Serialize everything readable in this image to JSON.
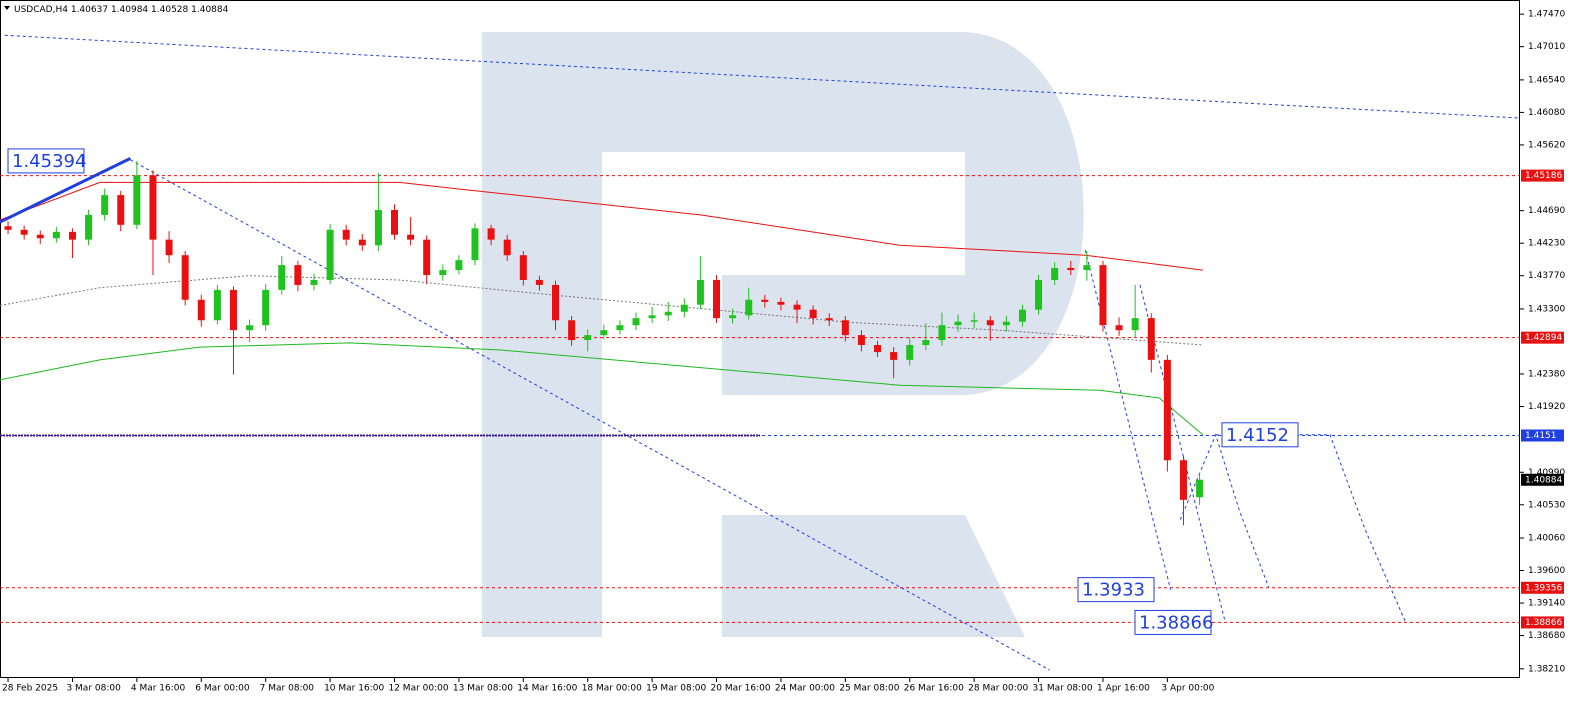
{
  "chart_data": {
    "type": "candlestick",
    "title": "USDCAD,H4",
    "bull_color": "#1fc21f",
    "bear_color": "#e81010",
    "open": [
      1.4447,
      1.4442,
      1.4435,
      1.443,
      1.4439,
      1.4428,
      1.4463,
      1.4491,
      1.4449,
      1.4519,
      1.4428,
      1.4406,
      1.4343,
      1.4314,
      1.4357,
      1.43,
      1.4307,
      1.4357,
      1.4392,
      1.4364,
      1.4371,
      1.4442,
      1.4428,
      1.442,
      1.447,
      1.4435,
      1.4428,
      1.4378,
      1.4385,
      1.4399,
      1.4444,
      1.4428,
      1.4406,
      1.4371,
      1.4364,
      1.4314,
      1.4286,
      1.4293,
      1.43,
      1.4307,
      1.4317,
      1.4321,
      1.4326,
      1.4336,
      1.4371,
      1.4317,
      1.4321,
      1.4343,
      1.434,
      1.4336,
      1.4329,
      1.4317,
      1.4314,
      1.4293,
      1.4279,
      1.4269,
      1.4258,
      1.4279,
      1.4286,
      1.4307,
      1.4312,
      1.4314,
      1.4307,
      1.4312,
      1.4329,
      1.4371,
      1.4388,
      1.4385,
      1.4392,
      1.4307,
      1.43,
      1.4317,
      1.4258,
      1.4116,
      1.40637
    ],
    "high": [
      1.4454,
      1.4448,
      1.4441,
      1.4446,
      1.4444,
      1.447,
      1.45,
      1.4497,
      1.4539,
      1.4526,
      1.444,
      1.4412,
      1.435,
      1.4364,
      1.4362,
      1.4315,
      1.4365,
      1.4405,
      1.4398,
      1.438,
      1.445,
      1.4449,
      1.4436,
      1.4522,
      1.4478,
      1.446,
      1.4434,
      1.4393,
      1.4406,
      1.4451,
      1.4449,
      1.4435,
      1.4412,
      1.4377,
      1.437,
      1.432,
      1.4301,
      1.4308,
      1.4314,
      1.4325,
      1.4333,
      1.434,
      1.4345,
      1.4405,
      1.4378,
      1.433,
      1.436,
      1.435,
      1.4346,
      1.4342,
      1.4335,
      1.4324,
      1.432,
      1.43,
      1.4285,
      1.4276,
      1.429,
      1.431,
      1.4325,
      1.4322,
      1.4325,
      1.432,
      1.432,
      1.4336,
      1.4378,
      1.4396,
      1.4398,
      1.4412,
      1.4398,
      1.4318,
      1.4364,
      1.4324,
      1.4265,
      1.4122,
      1.40984
    ],
    "low": [
      1.4436,
      1.4428,
      1.4422,
      1.4424,
      1.4402,
      1.442,
      1.4455,
      1.444,
      1.4443,
      1.4378,
      1.4395,
      1.4335,
      1.4305,
      1.4308,
      1.4237,
      1.4283,
      1.4299,
      1.435,
      1.4355,
      1.4356,
      1.4365,
      1.442,
      1.4412,
      1.4412,
      1.4428,
      1.442,
      1.4365,
      1.437,
      1.4379,
      1.4392,
      1.442,
      1.4398,
      1.4363,
      1.4356,
      1.43,
      1.4278,
      1.427,
      1.4287,
      1.4294,
      1.43,
      1.431,
      1.4313,
      1.4318,
      1.433,
      1.431,
      1.4309,
      1.4315,
      1.4332,
      1.4328,
      1.431,
      1.4308,
      1.4306,
      1.4284,
      1.427,
      1.4262,
      1.4232,
      1.425,
      1.4272,
      1.4278,
      1.4298,
      1.4303,
      1.4285,
      1.4298,
      1.4305,
      1.4322,
      1.4364,
      1.4378,
      1.437,
      1.4298,
      1.4292,
      1.429,
      1.424,
      1.41,
      1.4024,
      1.40528
    ],
    "close": [
      1.4442,
      1.4435,
      1.443,
      1.4439,
      1.4428,
      1.4463,
      1.4491,
      1.4449,
      1.4519,
      1.4428,
      1.4406,
      1.4343,
      1.4314,
      1.4357,
      1.43,
      1.4307,
      1.4357,
      1.4392,
      1.4364,
      1.4371,
      1.4442,
      1.4428,
      1.442,
      1.447,
      1.4435,
      1.4428,
      1.4378,
      1.4385,
      1.4399,
      1.4444,
      1.4428,
      1.4406,
      1.4371,
      1.4364,
      1.4314,
      1.4286,
      1.4293,
      1.43,
      1.4307,
      1.4317,
      1.4321,
      1.4326,
      1.4336,
      1.4371,
      1.4317,
      1.4321,
      1.4343,
      1.434,
      1.4336,
      1.4329,
      1.4317,
      1.4314,
      1.4293,
      1.4279,
      1.4269,
      1.4258,
      1.4279,
      1.4286,
      1.4307,
      1.4312,
      1.4314,
      1.4307,
      1.4312,
      1.4329,
      1.4371,
      1.4388,
      1.4385,
      1.4392,
      1.4307,
      1.43,
      1.4317,
      1.4258,
      1.4116,
      1.406,
      1.40884
    ],
    "xlim": [
      -0.5,
      93.9
    ],
    "ylim": [
      1.3808,
      1.4767
    ],
    "xticks": [
      {
        "value": 0,
        "label": "28 Feb 2025"
      },
      {
        "value": 4,
        "label": "3 Mar 08:00"
      },
      {
        "value": 8,
        "label": "4 Mar 16:00"
      },
      {
        "value": 12,
        "label": "6 Mar 00:00"
      },
      {
        "value": 16,
        "label": "7 Mar 08:00"
      },
      {
        "value": 20,
        "label": "10 Mar 16:00"
      },
      {
        "value": 24,
        "label": "12 Mar 00:00"
      },
      {
        "value": 28,
        "label": "13 Mar 08:00"
      },
      {
        "value": 32,
        "label": "14 Mar 16:00"
      },
      {
        "value": 36,
        "label": "18 Mar 00:00"
      },
      {
        "value": 40,
        "label": "19 Mar 08:00"
      },
      {
        "value": 44,
        "label": "20 Mar 16:00"
      },
      {
        "value": 48,
        "label": "24 Mar 00:00"
      },
      {
        "value": 52,
        "label": "25 Mar 08:00"
      },
      {
        "value": 56,
        "label": "26 Mar 16:00"
      },
      {
        "value": 60,
        "label": "28 Mar 00:00"
      },
      {
        "value": 64,
        "label": "31 Mar 08:00"
      },
      {
        "value": 68,
        "label": "1 Apr 16:00"
      },
      {
        "value": 72,
        "label": "3 Apr 00:00"
      }
    ],
    "yticks": [
      {
        "value": 1.4747,
        "label": "1.47470"
      },
      {
        "value": 1.4701,
        "label": "1.47010"
      },
      {
        "value": 1.4654,
        "label": "1.46540"
      },
      {
        "value": 1.4608,
        "label": "1.46080"
      },
      {
        "value": 1.4562,
        "label": "1.45620"
      },
      {
        "value": 1.4469,
        "label": "1.44690"
      },
      {
        "value": 1.4423,
        "label": "1.44230"
      },
      {
        "value": 1.4377,
        "label": "1.43770"
      },
      {
        "value": 1.433,
        "label": "1.43300"
      },
      {
        "value": 1.4238,
        "label": "1.42380"
      },
      {
        "value": 1.4192,
        "label": "1.41920"
      },
      {
        "value": 1.4099,
        "label": "1.40990"
      },
      {
        "value": 1.4053,
        "label": "1.40530"
      },
      {
        "value": 1.4006,
        "label": "1.40060"
      },
      {
        "value": 1.396,
        "label": "1.39600"
      },
      {
        "value": 1.3914,
        "label": "1.39140"
      },
      {
        "value": 1.3868,
        "label": "1.38680"
      },
      {
        "value": 1.3821,
        "label": "1.38210"
      }
    ],
    "levels": [
      {
        "value": 1.45186,
        "color": "#e81010"
      },
      {
        "value": 1.42894,
        "color": "#e81010"
      },
      {
        "value": 1.4151,
        "color": "#1f3fe0"
      },
      {
        "value": 1.39356,
        "color": "#e81010"
      },
      {
        "value": 1.38866,
        "color": "#e81010"
      }
    ],
    "overlays": [
      {
        "color": "#e81010",
        "dash": "none",
        "width": 1,
        "x": [
          -0.5,
          5.7,
          24.3,
          28.7,
          43.0,
          55.4,
          66.9,
          74.2
        ],
        "values": [
          1.4456,
          1.4509,
          1.4509,
          1.4498,
          1.4463,
          1.442,
          1.4406,
          1.4385
        ]
      },
      {
        "color": "#1fb81f",
        "dash": "none",
        "width": 1,
        "x": [
          -0.5,
          5.7,
          11.9,
          21.2,
          30.6,
          43.0,
          55.4,
          67.8,
          71.5,
          74.2
        ],
        "values": [
          1.423,
          1.4258,
          1.4276,
          1.4282,
          1.4272,
          1.4247,
          1.4222,
          1.4215,
          1.4204,
          1.4152
        ]
      },
      {
        "color": "#777777",
        "dash": "2 2",
        "width": 1,
        "x": [
          -0.5,
          5.7,
          15.0,
          24.3,
          33.7,
          52.3,
          61.6,
          74.2
        ],
        "values": [
          1.4335,
          1.436,
          1.4377,
          1.4371,
          1.435,
          1.4311,
          1.43,
          1.4279
        ]
      },
      {
        "color": "#1f3fe0",
        "dash": "3 3",
        "width": 1,
        "x": [
          -0.2,
          93.9
        ],
        "values": [
          1.4717,
          1.46
        ]
      },
      {
        "color": "#1f3fe0",
        "dash": "3 3",
        "width": 1,
        "x": [
          7.6,
          64.7
        ],
        "values": [
          1.4541,
          1.3819
        ]
      },
      {
        "color": "#1f3fe0",
        "dash": "none",
        "width": 3,
        "x": [
          -0.5,
          7.6
        ],
        "values": [
          1.4453,
          1.4543
        ]
      },
      {
        "color": "#1f3fe0",
        "dash": "3 3",
        "width": 1,
        "x": [
          66.9,
          72.2
        ],
        "values": [
          1.4413,
          1.3933
        ]
      },
      {
        "color": "#1f3fe0",
        "dash": "3 3",
        "width": 1,
        "x": [
          70.3,
          75.6
        ],
        "values": [
          1.4364,
          1.38866
        ]
      },
      {
        "color": "#1f3fe0",
        "dash": "3 3",
        "width": 1,
        "x": [
          72.8,
          75.0,
          76.5,
          78.3
        ],
        "values": [
          1.4032,
          1.4152,
          1.4043,
          1.3936
        ]
      },
      {
        "color": "#1f3fe0",
        "dash": "3 3",
        "width": 1,
        "x": [
          75.0,
          82.1,
          84.3,
          86.8
        ],
        "values": [
          1.4152,
          1.4152,
          1.4017,
          1.38866
        ]
      }
    ],
    "annotations": [
      {
        "value": 1.45394
      },
      {
        "value": 1.4152
      },
      {
        "value": 1.3933
      },
      {
        "value": 1.38866
      }
    ]
  }
}
